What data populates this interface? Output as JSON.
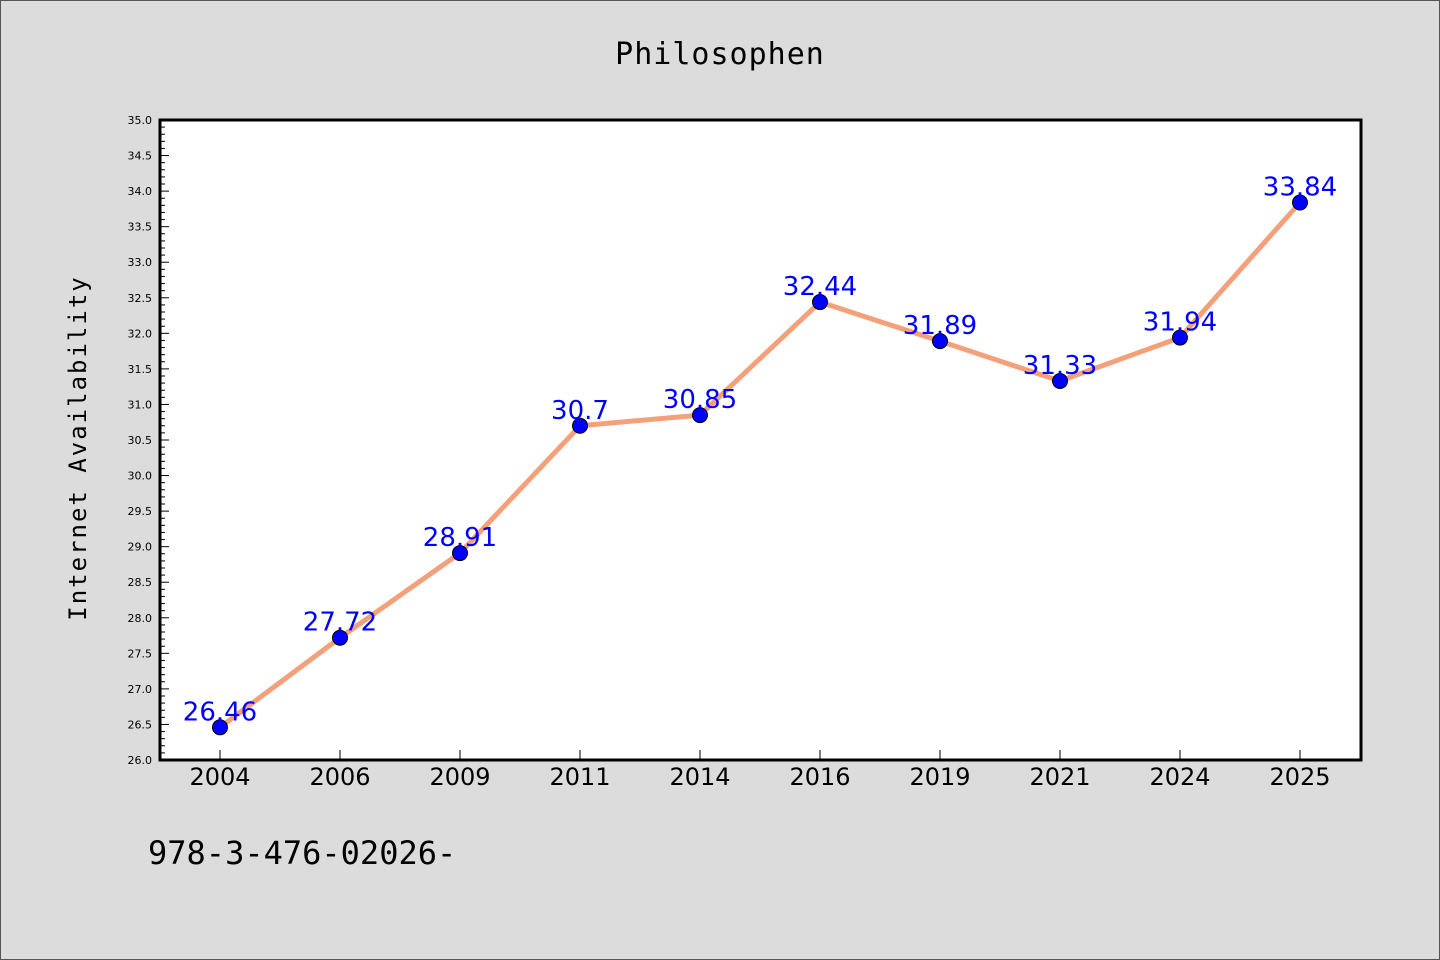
{
  "chart_data": {
    "type": "line",
    "title": "Philosophen",
    "xlabel": "",
    "ylabel": "Internet Availability",
    "categories": [
      "2004",
      "2006",
      "2009",
      "2011",
      "2014",
      "2016",
      "2019",
      "2021",
      "2024",
      "2025"
    ],
    "series": [
      {
        "values": [
          26.46,
          27.72,
          28.91,
          30.7,
          30.85,
          32.44,
          31.89,
          31.33,
          31.94,
          33.84
        ],
        "data_labels": [
          "26.46",
          "27.72",
          "28.91",
          "30.7",
          "30.85",
          "32.44",
          "31.89",
          "31.33",
          "31.94",
          "33.84"
        ],
        "line_color": "#f4a07a",
        "marker_color": "#0000ff"
      }
    ],
    "ylim": [
      26.0,
      35.0
    ],
    "yticks": [
      "26.0",
      "26.5",
      "27.0",
      "27.5",
      "28.0",
      "28.5",
      "29.0",
      "29.5",
      "30.0",
      "30.5",
      "31.0",
      "31.5",
      "32.0",
      "32.5",
      "33.0",
      "33.5",
      "34.0",
      "34.5",
      "35.0"
    ],
    "grid": false,
    "legend": "none"
  },
  "footer_text": "978-3-476-02026-"
}
